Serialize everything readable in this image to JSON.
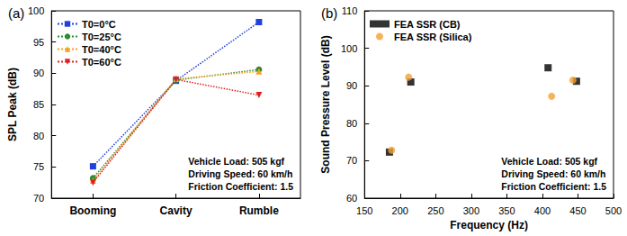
{
  "chart_data": [
    {
      "type": "line",
      "title": "(a)",
      "y_label": "SPL Peak (dB)",
      "categories": [
        "Booming",
        "Cavity",
        "Rumble"
      ],
      "series": [
        {
          "name": "T0=0°C",
          "color": "#1f3fe0",
          "marker": "square",
          "line_style": "dotted",
          "values": [
            75.1,
            88.8,
            98.2
          ]
        },
        {
          "name": "T0=25°C",
          "color": "#2e8b2e",
          "marker": "circle",
          "line_style": "dotted",
          "values": [
            73.2,
            88.9,
            90.6
          ]
        },
        {
          "name": "T0=40°C",
          "color": "#f5a020",
          "marker": "triangle",
          "line_style": "dotted",
          "values": [
            72.8,
            89.1,
            90.3
          ]
        },
        {
          "name": "T0=60°C",
          "color": "#e02020",
          "marker": "triangle_down",
          "line_style": "dotted",
          "values": [
            72.5,
            89.0,
            86.5
          ]
        }
      ],
      "ylim": [
        70,
        100
      ],
      "yticks": [
        70,
        75,
        80,
        85,
        90,
        95,
        100
      ],
      "annotations": [
        "Vehicle Load: 505 kgf",
        "Driving Speed: 60 km/h",
        "Friction Coefficient: 1.5"
      ],
      "legend": "upper left",
      "grid": false
    },
    {
      "type": "scatter",
      "title": "(b)",
      "x_label": "Frequency (Hz)",
      "y_label": "Sound Pressure Level (dB)",
      "series": [
        {
          "name": "FEA SSR (CB)",
          "color": "#000000",
          "marker": "square",
          "x": [
            185,
            215,
            408,
            448
          ],
          "values": [
            72.3,
            91.0,
            94.8,
            91.2
          ]
        },
        {
          "name": "FEA SSR (Silica)",
          "color": "#f5a030",
          "marker": "circle",
          "x": [
            188,
            212,
            413,
            443
          ],
          "values": [
            72.8,
            92.3,
            87.2,
            91.5
          ]
        }
      ],
      "xlim": [
        150,
        500
      ],
      "xticks": [
        150,
        200,
        250,
        300,
        350,
        400,
        450,
        500
      ],
      "ylim": [
        60,
        110
      ],
      "yticks": [
        60,
        70,
        80,
        90,
        100,
        110
      ],
      "annotations": [
        "Vehicle Load: 505 kgf",
        "Driving Speed: 60 km/h",
        "Friction Coefficient: 1.5"
      ],
      "legend": "upper left",
      "grid": false
    }
  ]
}
